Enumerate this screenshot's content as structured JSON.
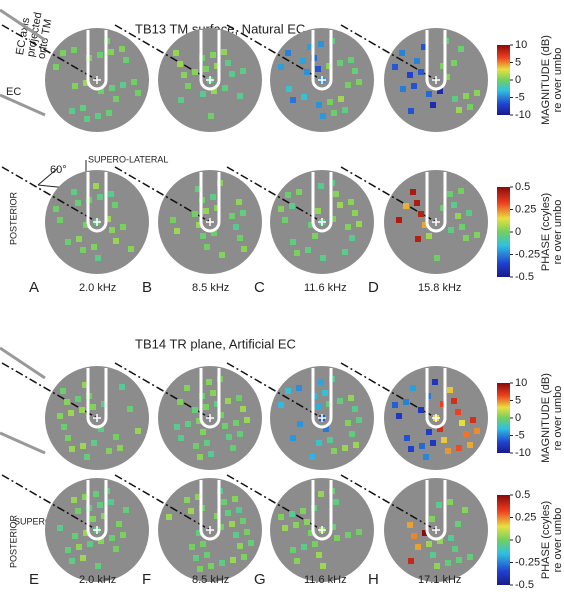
{
  "sections": [
    {
      "title": "TB13 TM surface, Natural EC",
      "annotations": {
        "ec_axis": [
          "EC axis",
          "projected",
          "onto TM"
        ],
        "ec": "EC",
        "angle": "60°",
        "superior": "SUPERO-LATERAL",
        "posterior": "POSTERIOR"
      },
      "panels": [
        {
          "letter": "A",
          "freq": "2.0 kHz"
        },
        {
          "letter": "B",
          "freq": "8.5 kHz"
        },
        {
          "letter": "C",
          "freq": "11.6 kHz"
        },
        {
          "letter": "D",
          "freq": "15.8 kHz"
        }
      ],
      "colorbars": [
        {
          "label": "MAGNITUDE (dB)",
          "sublabel": "re over umbo",
          "ticks": [
            10,
            5,
            0,
            -5,
            -10
          ]
        },
        {
          "label": "PHASE (ccyles)",
          "sublabel": "re over umbo",
          "ticks": [
            0.5,
            0.25,
            0,
            -0.25,
            -0.5
          ]
        }
      ]
    },
    {
      "title": "TB14 TR plane, Artificial EC",
      "annotations": {
        "superior": "SUPERO-LATERAL",
        "posterior": "POSTERIOR"
      },
      "panels": [
        {
          "letter": "E",
          "freq": "2.0 kHz"
        },
        {
          "letter": "F",
          "freq": "8.5 kHz"
        },
        {
          "letter": "G",
          "freq": "11.6 kHz"
        },
        {
          "letter": "H",
          "freq": "17.1 kHz"
        }
      ],
      "colorbars": [
        {
          "label": "MAGNITUDE (dB)",
          "sublabel": "re over umbo",
          "ticks": [
            10,
            5,
            0,
            -5,
            -10
          ]
        },
        {
          "label": "PHASE (ccyles)",
          "sublabel": "re over umbo",
          "ticks": [
            0.5,
            0.25,
            0,
            -0.25,
            -0.5
          ]
        }
      ]
    }
  ]
}
